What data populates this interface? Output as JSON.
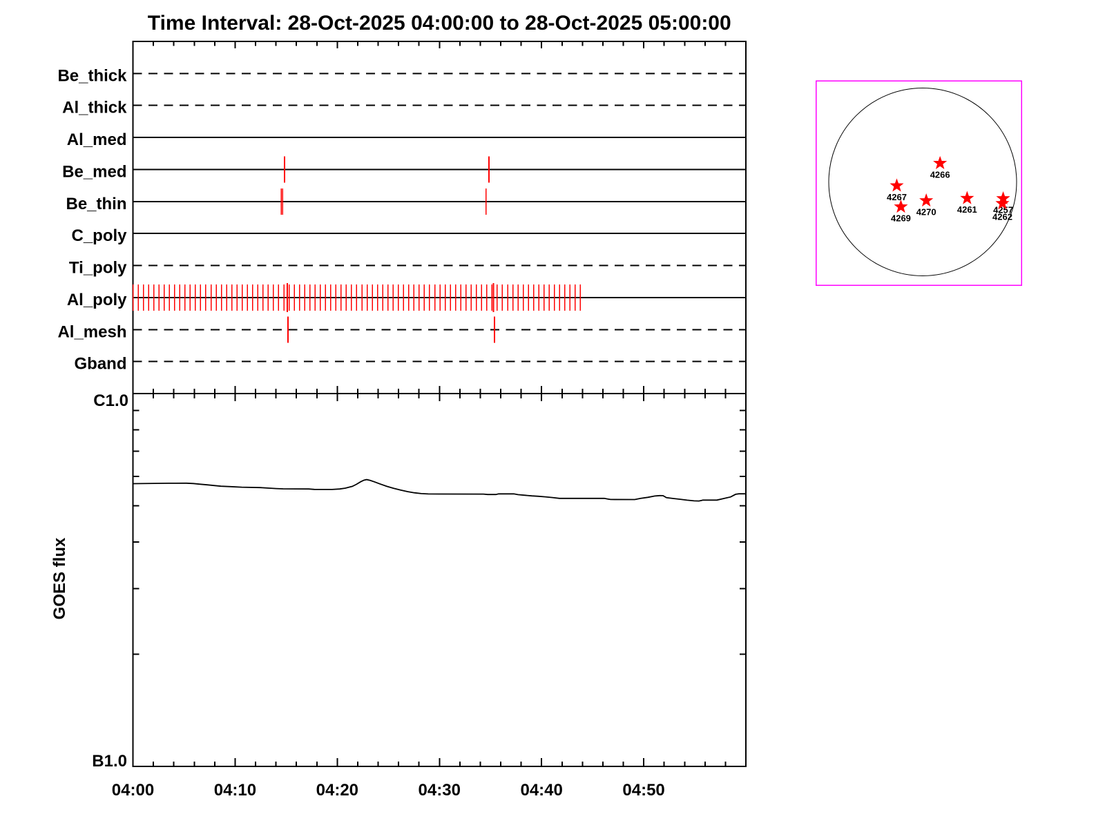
{
  "title": "Time Interval: 28-Oct-2025 04:00:00 to 28-Oct-2025 05:00:00",
  "colors": {
    "background": "#ffffff",
    "axis": "#000000",
    "exposure_mark": "#ff0000",
    "map_border": "#ff00ff",
    "active_region_star": "#ff0000"
  },
  "chart_data": [
    {
      "type": "timeline",
      "panel": "xrt-filter-timeline",
      "x_unit": "minutes after 28-Oct-2025 04:00:00",
      "xlim": [
        0,
        60
      ],
      "x_major_tick_minutes": 10,
      "x_minor_tick_minutes": 2,
      "x_tick_labels": [
        "04:00",
        "04:10",
        "04:20",
        "04:30",
        "04:40",
        "04:50"
      ],
      "categories": [
        "Be_thick",
        "Al_thick",
        "Al_med",
        "Be_med",
        "Be_thin",
        "C_poly",
        "Ti_poly",
        "Al_poly",
        "Al_mesh",
        "Gband"
      ],
      "row_line_styles": [
        "dashed",
        "dashed",
        "solid",
        "solid",
        "solid",
        "solid",
        "dashed",
        "solid",
        "dashed",
        "dashed"
      ],
      "exposures": {
        "Be_thick": [],
        "Al_thick": [],
        "Al_med": [],
        "Be_med": [
          14.826,
          34.837
        ],
        "Be_thin": [
          14.515,
          14.664,
          34.58
        ],
        "C_poly": [],
        "Ti_poly": [],
        "Al_poly": [
          0.0,
          0.509,
          1.019,
          1.528,
          2.038,
          2.547,
          3.056,
          3.566,
          4.075,
          4.585,
          5.094,
          5.603,
          6.113,
          6.622,
          7.132,
          7.641,
          8.15,
          8.66,
          9.169,
          9.679,
          10.188,
          10.697,
          11.207,
          11.716,
          12.226,
          12.735,
          13.244,
          13.754,
          14.263,
          14.773,
          15.282,
          15.791,
          16.301,
          16.81,
          17.32,
          17.829,
          18.338,
          18.848,
          19.357,
          19.867,
          20.376,
          20.885,
          21.395,
          21.904,
          22.414,
          22.923,
          23.432,
          23.942,
          24.451,
          24.961,
          25.47,
          25.979,
          26.489,
          26.998,
          27.508,
          28.017,
          28.526,
          29.036,
          29.545,
          30.055,
          30.564,
          31.073,
          31.583,
          32.092,
          32.602,
          33.111,
          33.62,
          34.13,
          34.639,
          35.149,
          35.658,
          36.167,
          36.677,
          37.186,
          37.696,
          38.205,
          38.714,
          39.224,
          39.733,
          40.243,
          40.752,
          41.261,
          41.771,
          42.28,
          42.79,
          43.299,
          43.808
        ],
        "Al_mesh": [
          15.177,
          35.378
        ],
        "Gband": []
      },
      "long_exposures": {
        "Al_poly": [
          15.103,
          35.297
        ]
      }
    },
    {
      "type": "line",
      "panel": "goes-flux",
      "ylabel": "GOES flux",
      "y_scale": "log",
      "ylim": [
        1e-07,
        1e-06
      ],
      "y_axis_labels": {
        "top": "C1.0",
        "bottom": "B1.0"
      },
      "y_minor_ticks": [
        2e-07,
        3e-07,
        4e-07,
        5e-07,
        6e-07,
        7e-07,
        8e-07,
        9e-07
      ],
      "x_tick_labels": [
        "04:00",
        "04:10",
        "04:20",
        "04:30",
        "04:40",
        "04:50"
      ],
      "x_major_tick_minutes": 10,
      "x_minor_tick_minutes": 2,
      "xlim": [
        0,
        60
      ],
      "series": [
        {
          "name": "GOES flux",
          "x_minutes": [
            0.0,
            3.48,
            5.24,
            5.92,
            6.59,
            7.27,
            7.94,
            8.62,
            9.57,
            10.65,
            12.47,
            13.35,
            14.03,
            14.7,
            17.21,
            17.75,
            19.5,
            20.25,
            20.79,
            21.46,
            21.87,
            22.28,
            22.61,
            22.88,
            23.22,
            23.63,
            24.17,
            24.85,
            25.52,
            26.2,
            26.87,
            27.55,
            28.23,
            28.9,
            30.25,
            34.31,
            34.72,
            35.53,
            35.8,
            37.28,
            37.69,
            38.37,
            39.04,
            39.72,
            40.39,
            41.07,
            41.75,
            46.14,
            46.48,
            46.75,
            49.12,
            49.66,
            50.4,
            51.08,
            51.55,
            51.89,
            52.23,
            52.9,
            53.58,
            54.25,
            54.93,
            55.4,
            55.81,
            57.16,
            57.84,
            58.51,
            58.99,
            59.32,
            60.0
          ],
          "flux_w_m2": [
            5.732e-07,
            5.747e-07,
            5.749e-07,
            5.737e-07,
            5.713e-07,
            5.691e-07,
            5.667e-07,
            5.643e-07,
            5.628e-07,
            5.609e-07,
            5.595e-07,
            5.576e-07,
            5.561e-07,
            5.552e-07,
            5.547e-07,
            5.533e-07,
            5.531e-07,
            5.547e-07,
            5.576e-07,
            5.635e-07,
            5.708e-07,
            5.799e-07,
            5.856e-07,
            5.878e-07,
            5.848e-07,
            5.799e-07,
            5.725e-07,
            5.638e-07,
            5.571e-07,
            5.512e-07,
            5.458e-07,
            5.419e-07,
            5.391e-07,
            5.379e-07,
            5.377e-07,
            5.375e-07,
            5.361e-07,
            5.361e-07,
            5.382e-07,
            5.382e-07,
            5.357e-07,
            5.336e-07,
            5.316e-07,
            5.302e-07,
            5.284e-07,
            5.262e-07,
            5.235e-07,
            5.235e-07,
            5.215e-07,
            5.199e-07,
            5.197e-07,
            5.232e-07,
            5.268e-07,
            5.311e-07,
            5.325e-07,
            5.322e-07,
            5.257e-07,
            5.23e-07,
            5.206e-07,
            5.177e-07,
            5.155e-07,
            5.151e-07,
            5.179e-07,
            5.179e-07,
            5.23e-07,
            5.282e-07,
            5.368e-07,
            5.384e-07,
            5.384e-07
          ]
        }
      ]
    },
    {
      "type": "map",
      "panel": "solar-disk-map",
      "stars": [
        {
          "label": "4266",
          "x_r": 0.185,
          "y_r": 0.199
        },
        {
          "label": "4267",
          "x_r": -0.276,
          "y_r": -0.04
        },
        {
          "label": "4269",
          "x_r": -0.232,
          "y_r": -0.265
        },
        {
          "label": "4270",
          "x_r": 0.038,
          "y_r": -0.199
        },
        {
          "label": "4261",
          "x_r": 0.473,
          "y_r": -0.174
        },
        {
          "label": "4257",
          "x_r": 0.857,
          "y_r": -0.177
        },
        {
          "label": "4262",
          "x_r": 0.849,
          "y_r": -0.229,
          "label_dy": 3
        }
      ]
    }
  ]
}
